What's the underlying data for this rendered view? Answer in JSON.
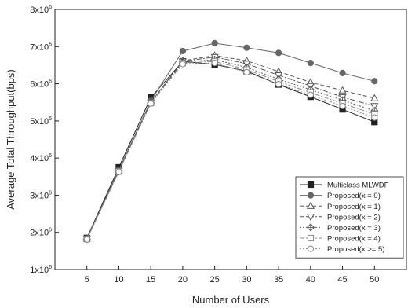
{
  "chart_data": {
    "type": "line",
    "xlabel": "Number of Users",
    "ylabel": "Average Total Throughput(bps)",
    "xlim": [
      0,
      55
    ],
    "ylim": [
      1000000,
      8000000
    ],
    "x_ticks": [
      5,
      10,
      15,
      20,
      25,
      30,
      35,
      40,
      45,
      50
    ],
    "x_tick_labels": [
      "5",
      "10",
      "15",
      "20",
      "25",
      "30",
      "35",
      "40",
      "45",
      "50"
    ],
    "y_ticks": [
      1000000,
      2000000,
      3000000,
      4000000,
      5000000,
      6000000,
      7000000,
      8000000
    ],
    "y_tick_labels": [
      {
        "base": "1x10",
        "exp": "6"
      },
      {
        "base": "2x10",
        "exp": "6"
      },
      {
        "base": "3x10",
        "exp": "6"
      },
      {
        "base": "4x10",
        "exp": "6"
      },
      {
        "base": "5x10",
        "exp": "6"
      },
      {
        "base": "6x10",
        "exp": "6"
      },
      {
        "base": "7x10",
        "exp": "6"
      },
      {
        "base": "8x10",
        "exp": "6"
      }
    ],
    "grid": false,
    "legend_position": "bottom-right",
    "x": [
      5,
      10,
      15,
      20,
      25,
      30,
      35,
      40,
      45,
      50
    ],
    "series": [
      {
        "name": "Multiclass MLWDF",
        "marker": "filled-square",
        "dash": "solid",
        "color": "#222222",
        "values": [
          1850000,
          3750000,
          5630000,
          6600000,
          6520000,
          6340000,
          5980000,
          5650000,
          5310000,
          4970000
        ]
      },
      {
        "name": "Proposed(x = 0)",
        "marker": "filled-circle",
        "dash": "solid",
        "color": "#666666",
        "values": [
          1840000,
          3680000,
          5540000,
          6880000,
          7090000,
          6970000,
          6830000,
          6560000,
          6290000,
          6070000
        ]
      },
      {
        "name": "Proposed(x = 1)",
        "marker": "triangle-up",
        "dash": "dash",
        "color": "#555555",
        "values": [
          1830000,
          3660000,
          5500000,
          6620000,
          6760000,
          6620000,
          6330000,
          6040000,
          5820000,
          5610000
        ]
      },
      {
        "name": "Proposed(x = 2)",
        "marker": "triangle-down",
        "dash": "dashdot",
        "color": "#555555",
        "values": [
          1830000,
          3650000,
          5490000,
          6600000,
          6720000,
          6540000,
          6230000,
          5940000,
          5640000,
          5400000
        ]
      },
      {
        "name": "Proposed(x = 3)",
        "marker": "diamond-cross",
        "dash": "dot",
        "color": "#555555",
        "values": [
          1820000,
          3640000,
          5480000,
          6580000,
          6650000,
          6440000,
          6120000,
          5840000,
          5560000,
          5270000
        ]
      },
      {
        "name": "Proposed(x = 4)",
        "marker": "square",
        "dash": "dashdot",
        "color": "#888888",
        "values": [
          1820000,
          3640000,
          5480000,
          6560000,
          6600000,
          6380000,
          6060000,
          5760000,
          5470000,
          5180000
        ]
      },
      {
        "name": "Proposed(x >= 5)",
        "marker": "circle",
        "dash": "dot",
        "color": "#888888",
        "values": [
          1810000,
          3630000,
          5470000,
          6530000,
          6560000,
          6310000,
          5990000,
          5700000,
          5400000,
          5090000
        ]
      }
    ]
  }
}
